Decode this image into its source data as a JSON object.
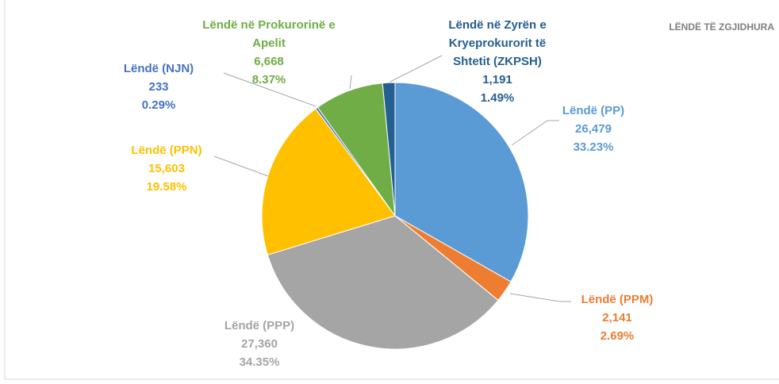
{
  "chart_data": {
    "type": "pie",
    "title": "LËNDË TË ZGJIDHURA",
    "categories": [
      "Lëndë (PP)",
      "Lëndë (PPM)",
      "Lëndë (PPP)",
      "Lëndë (PPN)",
      "Lëndë (NJN)",
      "Lëndë në Prokurorinë e Apelit",
      "Lëndë në Zyrën e Kryeprokurorit të Shtetit (ZKPSH)"
    ],
    "values": [
      26479,
      2141,
      27360,
      15603,
      233,
      6668,
      1191
    ],
    "value_labels": [
      "26,479",
      "2,141",
      "27,360",
      "15,603",
      "233",
      "6,668",
      "1,191"
    ],
    "percent_labels": [
      "33.23%",
      "2.69%",
      "34.35%",
      "19.58%",
      "0.29%",
      "8.37%",
      "1.49%"
    ],
    "colors": [
      "#5b9bd5",
      "#ed7d31",
      "#a5a5a5",
      "#ffc000",
      "#4472c4",
      "#70ad47",
      "#255e91"
    ]
  }
}
